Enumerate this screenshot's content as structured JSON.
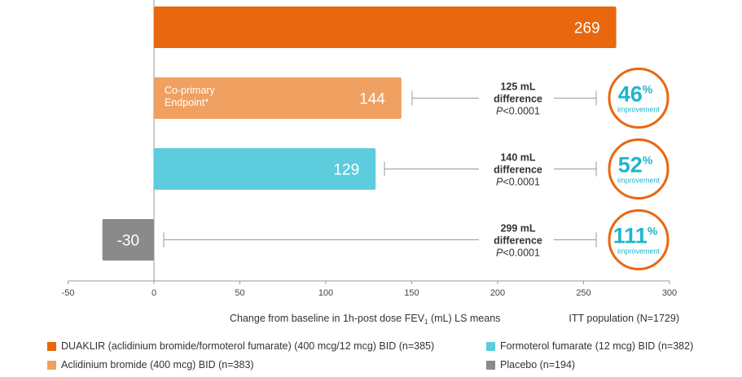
{
  "chart_data": {
    "type": "bar",
    "orientation": "horizontal",
    "categories": [
      "DUAKLIR (aclidinium bromide/formoterol fumarate) (400 mcg/12 mcg) BID (n=385)",
      "Aclidinium bromide (400 mcg) BID (n=383)",
      "Formoterol fumarate (12 mcg) BID (n=382)",
      "Placebo (n=194)"
    ],
    "values": [
      269,
      144,
      129,
      -30
    ],
    "value_labels": [
      "269",
      "144",
      "129",
      "-30"
    ],
    "colors": [
      "#e8670f",
      "#f0a060",
      "#5dccdd",
      "#8a8a8a"
    ],
    "bar_annotation": {
      "bar_index": 1,
      "lines": [
        "Co-primary",
        "Endpoint*"
      ]
    },
    "xlim": [
      -50,
      300
    ],
    "xticks": [
      "-50",
      "0",
      "50",
      "100",
      "150",
      "200",
      "250",
      "300"
    ],
    "xlabel": {
      "main": "Change from baseline in 1h-post dose FEV",
      "sub": "1",
      "tail": " (mL) LS means"
    },
    "population_note": "ITT population (N=1729)",
    "comparisons": [
      {
        "bar_index": 1,
        "diff_line1": "125 mL",
        "diff_line2": "difference",
        "p_prefix": "P",
        "p_value": "<0.0001",
        "pct": "46",
        "pct_sign": "%",
        "pct_label": "improvement"
      },
      {
        "bar_index": 2,
        "diff_line1": "140 mL",
        "diff_line2": "difference",
        "p_prefix": "P",
        "p_value": "<0.0001",
        "pct": "52",
        "pct_sign": "%",
        "pct_label": "improvement"
      },
      {
        "bar_index": 3,
        "diff_line1": "299 mL",
        "diff_line2": "difference",
        "p_prefix": "P",
        "p_value": "<0.0001",
        "pct": "111",
        "pct_sign": "%",
        "pct_label": "improvement"
      }
    ],
    "badge_color": "#e8670f",
    "legend_position": "bottom"
  },
  "legend": [
    {
      "label": "DUAKLIR (aclidinium bromide/formoterol fumarate) (400 mcg/12 mcg) BID (n=385)",
      "color": "#e8670f"
    },
    {
      "label": "Formoterol fumarate (12 mcg) BID (n=382)",
      "color": "#5dccdd"
    },
    {
      "label": "Aclidinium bromide (400 mcg) BID (n=383)",
      "color": "#f0a060"
    },
    {
      "label": "Placebo (n=194)",
      "color": "#8a8a8a"
    }
  ]
}
